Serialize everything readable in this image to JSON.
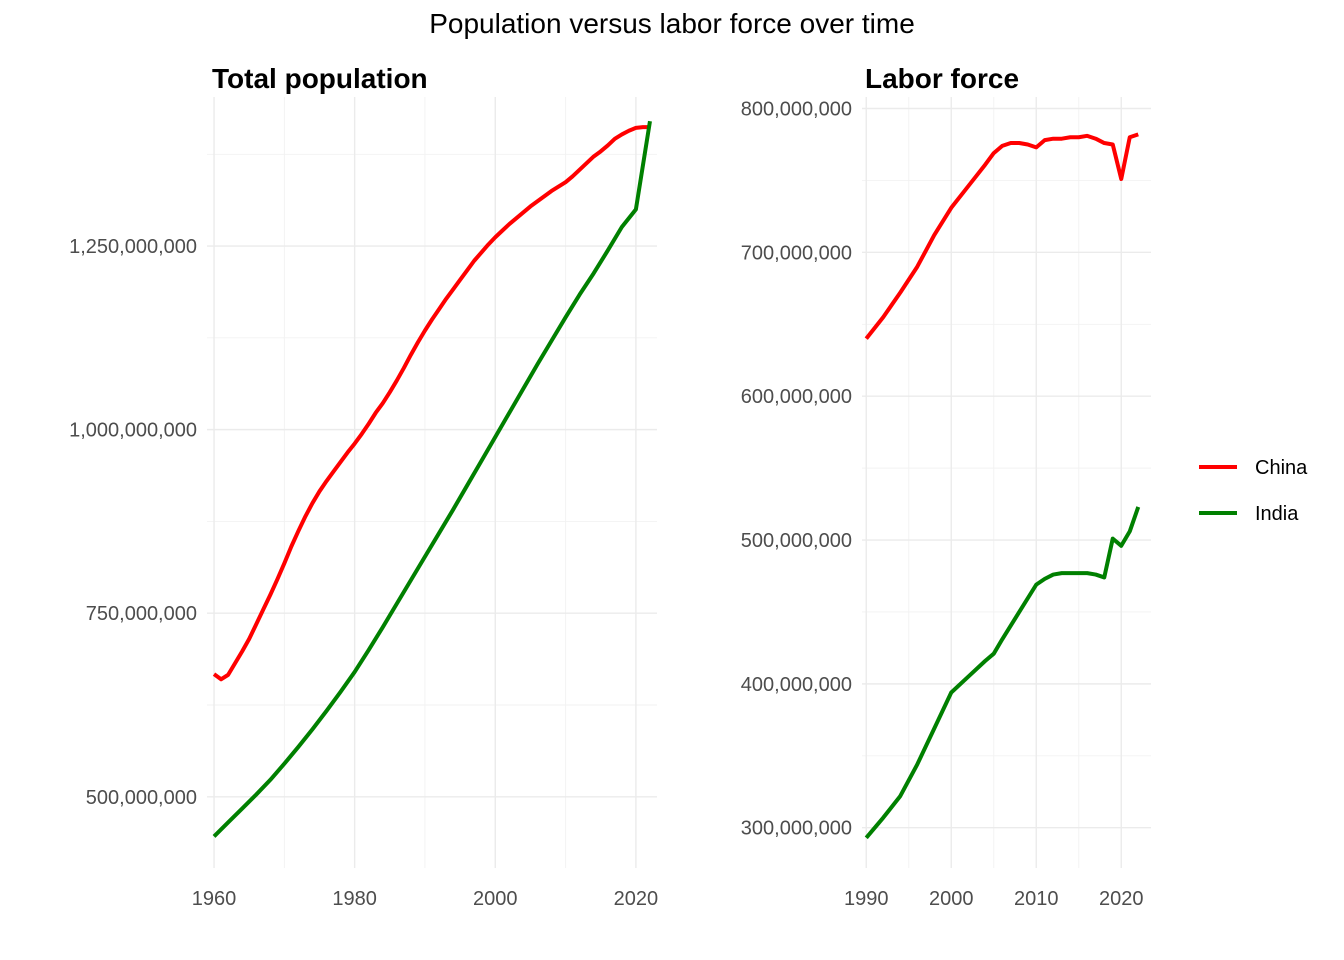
{
  "title": "Population versus labor force over time",
  "legend": {
    "position": "right",
    "items": [
      {
        "label": "China",
        "color": "#ff0000"
      },
      {
        "label": "India",
        "color": "#008000"
      }
    ]
  },
  "chart_data": [
    {
      "type": "line",
      "title": "Total population",
      "xlabel": "",
      "ylabel": "",
      "xlim": [
        1959,
        2023
      ],
      "ylim": [
        403000000,
        1453000000
      ],
      "xticks": [
        1960,
        1980,
        2000,
        2020
      ],
      "xtick_labels": [
        "1960",
        "1980",
        "2000",
        "2020"
      ],
      "yticks": [
        500000000,
        750000000,
        1000000000,
        1250000000
      ],
      "ytick_labels": [
        "500,000,000",
        "750,000,000",
        "1,000,000,000",
        "1,250,000,000"
      ],
      "grid": true,
      "series": [
        {
          "name": "China",
          "color": "#ff0000",
          "x": [
            1960,
            1961,
            1962,
            1963,
            1964,
            1965,
            1966,
            1967,
            1968,
            1969,
            1970,
            1971,
            1972,
            1973,
            1974,
            1975,
            1976,
            1977,
            1978,
            1979,
            1980,
            1981,
            1982,
            1983,
            1984,
            1985,
            1986,
            1987,
            1988,
            1989,
            1990,
            1991,
            1992,
            1993,
            1994,
            1995,
            1996,
            1997,
            1998,
            1999,
            2000,
            2001,
            2002,
            2003,
            2004,
            2005,
            2006,
            2007,
            2008,
            2009,
            2010,
            2011,
            2012,
            2013,
            2014,
            2015,
            2016,
            2017,
            2018,
            2019,
            2020,
            2021,
            2022
          ],
          "y": [
            667000000,
            660000000,
            666000000,
            682000000,
            698000000,
            715000000,
            735000000,
            755000000,
            775000000,
            796000000,
            818000000,
            841000000,
            862000000,
            882000000,
            900000000,
            916000000,
            930000000,
            943000000,
            956000000,
            969000000,
            981000000,
            994000000,
            1008000000,
            1023000000,
            1036000000,
            1051000000,
            1067000000,
            1084000000,
            1102000000,
            1119000000,
            1135000000,
            1150000000,
            1164000000,
            1178000000,
            1191000000,
            1204000000,
            1217000000,
            1230000000,
            1241000000,
            1252000000,
            1262000000,
            1271000000,
            1280000000,
            1288000000,
            1296000000,
            1304000000,
            1311000000,
            1318000000,
            1325000000,
            1331000000,
            1337000000,
            1345000000,
            1354000000,
            1363000000,
            1372000000,
            1379000000,
            1387000000,
            1396000000,
            1402000000,
            1407000000,
            1411000000,
            1412000000,
            1412000000
          ]
        },
        {
          "name": "India",
          "color": "#008000",
          "x": [
            1960,
            1962,
            1964,
            1966,
            1968,
            1970,
            1972,
            1974,
            1976,
            1978,
            1980,
            1982,
            1984,
            1986,
            1988,
            1990,
            1992,
            1994,
            1996,
            1998,
            2000,
            2002,
            2004,
            2006,
            2008,
            2010,
            2012,
            2014,
            2016,
            2018,
            2020,
            2022
          ],
          "y": [
            446000000,
            465000000,
            484000000,
            503000000,
            523000000,
            545000000,
            568000000,
            592000000,
            617000000,
            643000000,
            670000000,
            700000000,
            731000000,
            763000000,
            795000000,
            827000000,
            859000000,
            891000000,
            924000000,
            957000000,
            990000000,
            1023000000,
            1056000000,
            1089000000,
            1121000000,
            1153000000,
            1184000000,
            1213000000,
            1244000000,
            1276000000,
            1300000000,
            1420000000
          ]
        }
      ]
    },
    {
      "type": "line",
      "title": "Labor force",
      "xlabel": "",
      "ylabel": "",
      "xlim": [
        1989.5,
        2023.5
      ],
      "ylim": [
        272000000,
        808000000
      ],
      "xticks": [
        1990,
        2000,
        2010,
        2020
      ],
      "xtick_labels": [
        "1990",
        "2000",
        "2010",
        "2020"
      ],
      "yticks": [
        300000000,
        400000000,
        500000000,
        600000000,
        700000000,
        800000000
      ],
      "ytick_labels": [
        "300,000,000",
        "400,000,000",
        "500,000,000",
        "600,000,000",
        "700,000,000",
        "800,000,000"
      ],
      "grid": true,
      "series": [
        {
          "name": "China",
          "color": "#ff0000",
          "x": [
            1990,
            1992,
            1994,
            1996,
            1998,
            2000,
            2002,
            2004,
            2005,
            2006,
            2007,
            2008,
            2009,
            2010,
            2011,
            2012,
            2013,
            2014,
            2015,
            2016,
            2017,
            2018,
            2019,
            2020,
            2021,
            2022
          ],
          "y": [
            640000000,
            655000000,
            672000000,
            690000000,
            712000000,
            731000000,
            746000000,
            761000000,
            769000000,
            774000000,
            776000000,
            776000000,
            775000000,
            773000000,
            778000000,
            779000000,
            779000000,
            780000000,
            780000000,
            781000000,
            779000000,
            776000000,
            775000000,
            751000000,
            780000000,
            782000000
          ]
        },
        {
          "name": "India",
          "color": "#008000",
          "x": [
            1990,
            1992,
            1994,
            1996,
            1998,
            2000,
            2002,
            2004,
            2005,
            2006,
            2008,
            2010,
            2011,
            2012,
            2013,
            2014,
            2015,
            2016,
            2017,
            2018,
            2019,
            2020,
            2021,
            2022
          ],
          "y": [
            293000000,
            307000000,
            322000000,
            344000000,
            369000000,
            394000000,
            405000000,
            416000000,
            421000000,
            431000000,
            450000000,
            469000000,
            473000000,
            476000000,
            477000000,
            477000000,
            477000000,
            477000000,
            476000000,
            474000000,
            501000000,
            496000000,
            506000000,
            523000000
          ]
        }
      ]
    }
  ]
}
